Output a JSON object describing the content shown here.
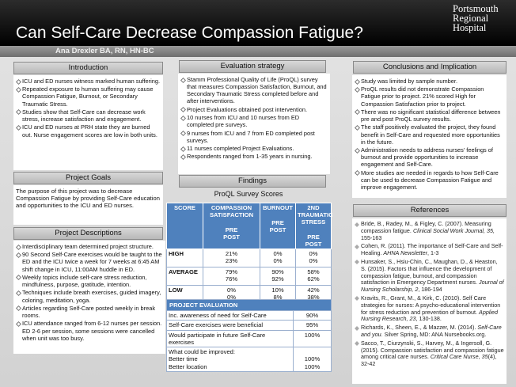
{
  "header": {
    "title": "Can Self-Care Decrease Compassion Fatigue?",
    "logo": [
      "Portsmouth",
      "Regional",
      "Hospital"
    ],
    "author": "Ana Drexler BA, RN, HN-BC"
  },
  "introduction": {
    "heading": "Introduction",
    "items": [
      "ICU and ED nurses witness marked human suffering.",
      "Repeated exposure to human suffering may cause Compassion Fatigue, Burnout, or Secondary Traumatic Stress.",
      "Studies show that Self-Care can decrease work stress, increase satisfaction and engagement.",
      "ICU and ED nurses at PRH state they are burned out. Nurse engagement scores are low in both units."
    ]
  },
  "project_goals": {
    "heading": "Project Goals",
    "text": "The purpose of this project was to decrease Compassion Fatigue by providing Self-Care education and opportunities to the ICU and ED nurses."
  },
  "project_descriptions": {
    "heading": "Project Descriptions",
    "items": [
      "Interdisciplinary team determined project structure.",
      "90 Second Self-Care exercises would be taught to the ED and the ICU twice a week for 7 weeks at 6:45 AM shift change in ICU, 11:00AM huddle in ED.",
      "Weekly topics include self-care stress reduction, mindfulness, purpose, gratitude, intention.",
      "Techniques include breath exercises, guided imagery, coloring, meditation, yoga.",
      "Articles regarding Self-Care posted weekly in break rooms.",
      "ICU attendance ranged from 6-12 nurses per session.  ED 2-6 per session, some sessions were cancelled when unit was too busy."
    ]
  },
  "evaluation_strategy": {
    "heading": "Evaluation strategy",
    "items": [
      "Stamm Professional Quality of Life (ProQL) survey that measures Compassion Satisfaction, Burnout, and Secondary Traumatic Stress completed before and after interventions.",
      "Project Evaluations obtained post intervention.",
      "10 nurses from ICU and 10 nurses from ED completed pre surveys.",
      "9 nurses from ICU and 7 from ED completed post surveys.",
      "11 nurses completed Project Evaluations.",
      "Respondents ranged from 1-35 years in nursing."
    ]
  },
  "findings": {
    "heading": "Findings",
    "survey_title": "ProQL Survey Scores",
    "survey": {
      "columns": [
        {
          "label": "SCORE"
        },
        {
          "label": "COMPASSION SATISFACTION",
          "sub": [
            "PRE",
            "POST"
          ]
        },
        {
          "label": "BURNOUT",
          "sub": [
            "PRE",
            "POST"
          ]
        },
        {
          "label": "2ND TRAUMATIC STRESS",
          "sub": [
            "PRE",
            "POST"
          ]
        }
      ],
      "rows": [
        {
          "label": "HIGH",
          "cells": [
            [
              "21%",
              "23%"
            ],
            [
              "0%",
              "0%"
            ],
            [
              "0%",
              "0%"
            ]
          ]
        },
        {
          "label": "AVERAGE",
          "cells": [
            [
              "79%",
              "76%"
            ],
            [
              "90%",
              "92%"
            ],
            [
              "58%",
              "62%"
            ]
          ]
        },
        {
          "label": "LOW",
          "cells": [
            [
              "0%",
              "0%"
            ],
            [
              "10%",
              "8%"
            ],
            [
              "42%",
              "38%"
            ]
          ]
        }
      ]
    },
    "evaluation": {
      "title": "PROJECT EVALUATION",
      "rows": [
        [
          [
            "Inc. awareness of need for Self-Care"
          ],
          [
            "90%"
          ]
        ],
        [
          [
            "Self-Care exercises were beneficial"
          ],
          [
            "95%"
          ]
        ],
        [
          [
            "Would participate in future Self-Care exercises"
          ],
          [
            "100%"
          ]
        ],
        [
          [
            "What could be improved:",
            "Better time",
            "Better location"
          ],
          [
            "100%",
            "100%"
          ]
        ]
      ]
    }
  },
  "conclusions": {
    "heading": "Conclusions and Implication",
    "items": [
      "Study was limited by sample number.",
      "ProQL results did not demonstrate Compassion Fatigue prior to project.  21%  scored High for Compassion Satisfaction prior to project.",
      "There was no significant statistical difference between pre and post ProQL survey results.",
      "The staff positively evaluated the project, they found benefit in Self-Care and requested more opportunities in the future.",
      "Administration needs to address nurses' feelings of burnout and provide opportunities to increase engagement and Self-Care.",
      "More studies are needed in regards to how Self-Care can be used to decrease Compassion Fatigue and improve engagement."
    ]
  },
  "references": {
    "heading": "References",
    "items": [
      [
        "Bride, B., Radey, M., & Figley, C. (2007). Measuring compassion fatigue. ",
        {
          "italic": "Clinical Social Work Journal, 35,"
        },
        " 155-163"
      ],
      [
        "Cohen, R. (2011). The importance of Self-Care and Self- Healing. ",
        {
          "italic": "AHNA Newsletter"
        },
        ", 1-3"
      ],
      [
        "Hunsaker, S., Hsiu-Chin, C., Maughan, D., & Heaston, S. (2015). Factors that influence the development of compassion fatigue, burnout, and compassion satisfaction in Emergency Department nurses. ",
        {
          "italic": "Journal of Nursing Scholarship, 2"
        },
        ", 186-194"
      ],
      [
        "Kravits, R., Grant, M., & Kirk, C. (2010). Self Care strategies for nurses: A psycho-educational intervention for stress reduction and prevention of burnout. ",
        {
          "italic": "Applied Nursing Research, 23"
        },
        ", 130-138."
      ],
      [
        "Richards, K., Sheen, E., & Mazzer, M. (2014). ",
        {
          "italic": "Self-Care and you"
        },
        ". Silver Spring, MD: ANA Nursebooks.org."
      ],
      [
        "Sacco, T., Ciurzynski, S., Harvey, M., & Ingersoll, G. (2015). Compassion satisfaction and compassion fatigue among critical care nurses. ",
        {
          "italic": "Critical Care Nurse, 35"
        },
        "(4), 32-42"
      ]
    ]
  }
}
